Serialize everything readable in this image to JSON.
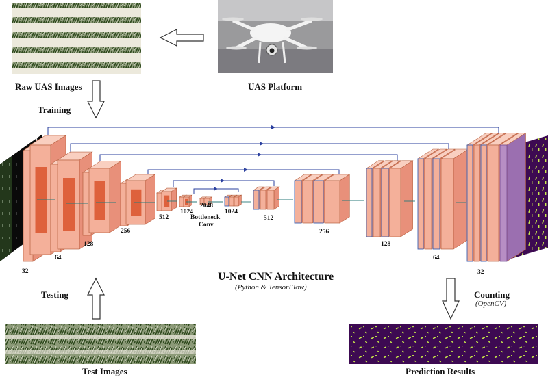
{
  "labels": {
    "raw_images": "Raw UAS Images",
    "platform": "UAS Platform",
    "training": "Training",
    "testing": "Testing",
    "test_images": "Test Images",
    "prediction_results": "Prediction Results",
    "counting": "Counting",
    "counting_tool": "(OpenCV)",
    "title": "U-Net CNN Architecture",
    "subtitle": "(Python & TensorFlow)",
    "bottleneck": "Bottleneck",
    "conv": "Conv"
  },
  "encoder_dims": [
    "32",
    "64",
    "128",
    "256",
    "512",
    "1024",
    "2048"
  ],
  "decoder_dims": [
    "1024",
    "512",
    "256",
    "128",
    "64",
    "32"
  ],
  "colors": {
    "block_face": "#f4b09a",
    "block_dark": "#d9532c",
    "block_side": "#e8907a",
    "decoder_edge": "#3a5fb0",
    "skip_line": "#2a3f9e",
    "prediction_bg": "#3d0a52",
    "prediction_dots": "#c8e84a"
  }
}
